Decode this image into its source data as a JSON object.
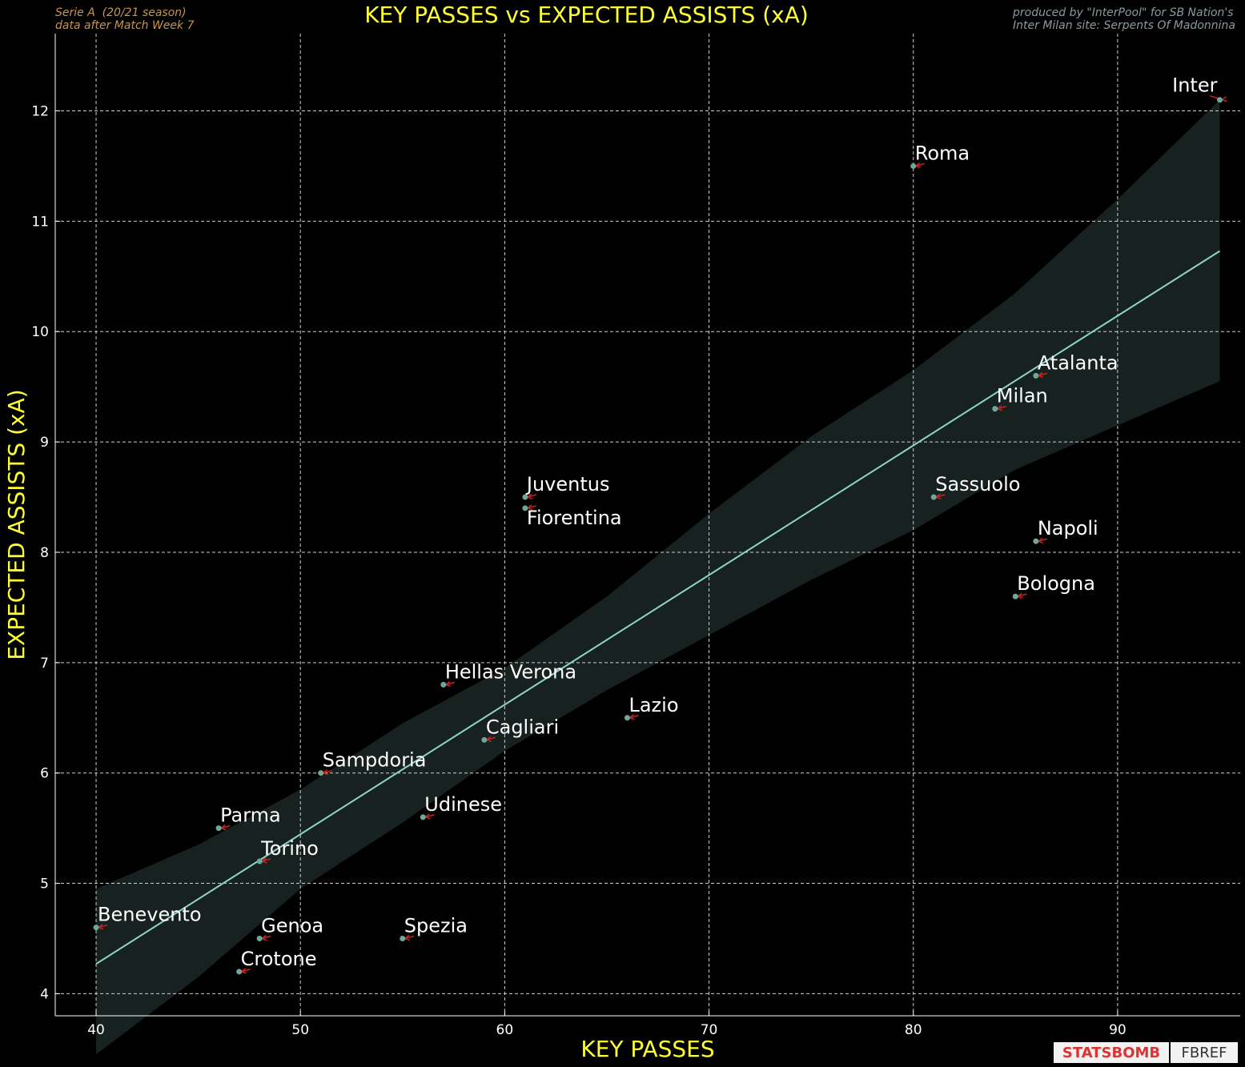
{
  "header": {
    "left_line1": "Serie A  (20/21 season)",
    "left_line2": "data after Match Week 7",
    "right_line1": "produced by \"InterPool\" for SB Nation's",
    "right_line2": "Inter Milan site: Serpents Of Madonnina"
  },
  "logos": {
    "statsbomb": "STATSBOMB",
    "fbref": "FBREF"
  },
  "colors": {
    "background": "#000000",
    "title": "#ffff33",
    "axis_label": "#ffff33",
    "regression_line": "#8fd6c4",
    "confidence_band": "#172120",
    "point": "#6fa89a",
    "arrow": "#cc2222",
    "label": "#ffffff"
  },
  "chart_data": {
    "type": "scatter",
    "title": "KEY PASSES vs EXPECTED ASSISTS (xA)",
    "xlabel": "KEY PASSES",
    "ylabel": "EXPECTED ASSISTS (xA)",
    "xlim": [
      38,
      96
    ],
    "ylim": [
      3.8,
      12.7
    ],
    "xticks": [
      40,
      50,
      60,
      70,
      80,
      90
    ],
    "yticks": [
      4,
      5,
      6,
      7,
      8,
      9,
      10,
      11,
      12
    ],
    "grid": true,
    "points": [
      {
        "team": "Inter",
        "x": 95,
        "y": 12.1
      },
      {
        "team": "Roma",
        "x": 80,
        "y": 11.5
      },
      {
        "team": "Atalanta",
        "x": 86,
        "y": 9.6
      },
      {
        "team": "Milan",
        "x": 84,
        "y": 9.3
      },
      {
        "team": "Juventus",
        "x": 61,
        "y": 8.5
      },
      {
        "team": "Sassuolo",
        "x": 81,
        "y": 8.5
      },
      {
        "team": "Fiorentina",
        "x": 61,
        "y": 8.4
      },
      {
        "team": "Napoli",
        "x": 86,
        "y": 8.1
      },
      {
        "team": "Bologna",
        "x": 85,
        "y": 7.6
      },
      {
        "team": "Hellas Verona",
        "x": 57,
        "y": 6.8
      },
      {
        "team": "Lazio",
        "x": 66,
        "y": 6.5
      },
      {
        "team": "Cagliari",
        "x": 59,
        "y": 6.3
      },
      {
        "team": "Sampdoria",
        "x": 51,
        "y": 6.0
      },
      {
        "team": "Udinese",
        "x": 56,
        "y": 5.6
      },
      {
        "team": "Parma",
        "x": 46,
        "y": 5.5
      },
      {
        "team": "Torino",
        "x": 48,
        "y": 5.2
      },
      {
        "team": "Benevento",
        "x": 40,
        "y": 4.6
      },
      {
        "team": "Genoa",
        "x": 48,
        "y": 4.5
      },
      {
        "team": "Spezia",
        "x": 55,
        "y": 4.5
      },
      {
        "team": "Crotone",
        "x": 47,
        "y": 4.2
      }
    ],
    "regression": {
      "x": [
        40,
        95
      ],
      "y": [
        4.27,
        10.73
      ]
    },
    "confidence_band": {
      "x": [
        40,
        45,
        50,
        55,
        60,
        65,
        70,
        75,
        80,
        85,
        90,
        95
      ],
      "upper": [
        4.95,
        5.35,
        5.85,
        6.45,
        6.95,
        7.6,
        8.35,
        9.05,
        9.65,
        10.35,
        11.2,
        12.1
      ],
      "lower": [
        3.45,
        4.15,
        4.95,
        5.55,
        6.2,
        6.75,
        7.25,
        7.75,
        8.2,
        8.75,
        9.15,
        9.55
      ]
    }
  }
}
